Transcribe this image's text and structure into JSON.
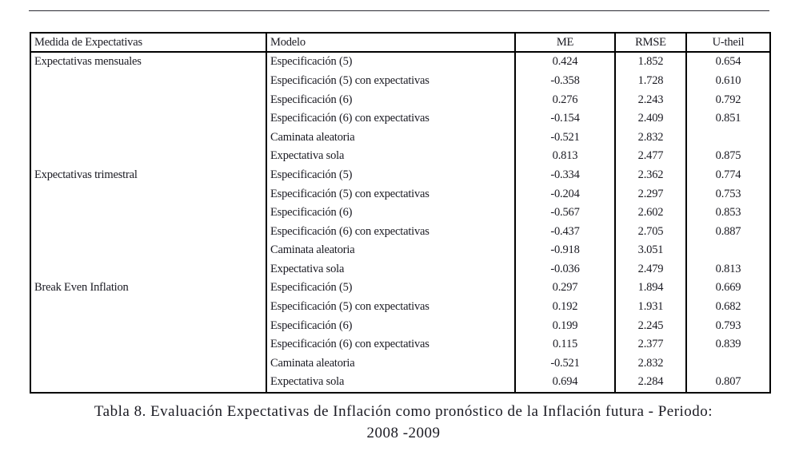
{
  "page": {
    "background": "#ffffff",
    "text_color": "#1a1a22",
    "border_color": "#000000"
  },
  "table": {
    "headers": {
      "measure": "Medida de Expectativas",
      "model": "Modelo",
      "me": "ME",
      "rmse": "RMSE",
      "utheil": "U-theil"
    },
    "groups": [
      {
        "measure": "Expectativas mensuales",
        "rows": [
          {
            "model": "Especificación (5)",
            "me": "0.424",
            "rmse": "1.852",
            "utheil": "0.654"
          },
          {
            "model": "Especificación (5) con expectativas",
            "me": "-0.358",
            "rmse": "1.728",
            "utheil": "0.610"
          },
          {
            "model": "Especificación (6)",
            "me": "0.276",
            "rmse": "2.243",
            "utheil": "0.792"
          },
          {
            "model": "Especificación (6) con expectativas",
            "me": "-0.154",
            "rmse": "2.409",
            "utheil": "0.851"
          },
          {
            "model": "Caminata aleatoria",
            "me": "-0.521",
            "rmse": "2.832",
            "utheil": ""
          },
          {
            "model": "Expectativa sola",
            "me": "0.813",
            "rmse": "2.477",
            "utheil": "0.875"
          }
        ]
      },
      {
        "measure": "Expectativas trimestral",
        "rows": [
          {
            "model": "Especificación (5)",
            "me": "-0.334",
            "rmse": "2.362",
            "utheil": "0.774"
          },
          {
            "model": "Especificación (5) con expectativas",
            "me": "-0.204",
            "rmse": "2.297",
            "utheil": "0.753"
          },
          {
            "model": "Especificación (6)",
            "me": "-0.567",
            "rmse": "2.602",
            "utheil": "0.853"
          },
          {
            "model": "Especificación (6) con expectativas",
            "me": "-0.437",
            "rmse": "2.705",
            "utheil": "0.887"
          },
          {
            "model": "Caminata aleatoria",
            "me": "-0.918",
            "rmse": "3.051",
            "utheil": ""
          },
          {
            "model": "Expectativa sola",
            "me": "-0.036",
            "rmse": "2.479",
            "utheil": "0.813"
          }
        ]
      },
      {
        "measure": "Break Even Inflation",
        "rows": [
          {
            "model": "Especificación (5)",
            "me": "0.297",
            "rmse": "1.894",
            "utheil": "0.669"
          },
          {
            "model": "Especificación (5) con expectativas",
            "me": "0.192",
            "rmse": "1.931",
            "utheil": "0.682"
          },
          {
            "model": "Especificación (6)",
            "me": "0.199",
            "rmse": "2.245",
            "utheil": "0.793"
          },
          {
            "model": "Especificación (6) con expectativas",
            "me": "0.115",
            "rmse": "2.377",
            "utheil": "0.839"
          },
          {
            "model": "Caminata aleatoria",
            "me": "-0.521",
            "rmse": "2.832",
            "utheil": ""
          },
          {
            "model": "Expectativa sola",
            "me": "0.694",
            "rmse": "2.284",
            "utheil": "0.807"
          }
        ]
      }
    ]
  },
  "caption": {
    "line1": "Tabla 8. Evaluación Expectativas de Inflación como pronóstico de la Inflación futura - Periodo:",
    "line2": "2008 -2009"
  }
}
